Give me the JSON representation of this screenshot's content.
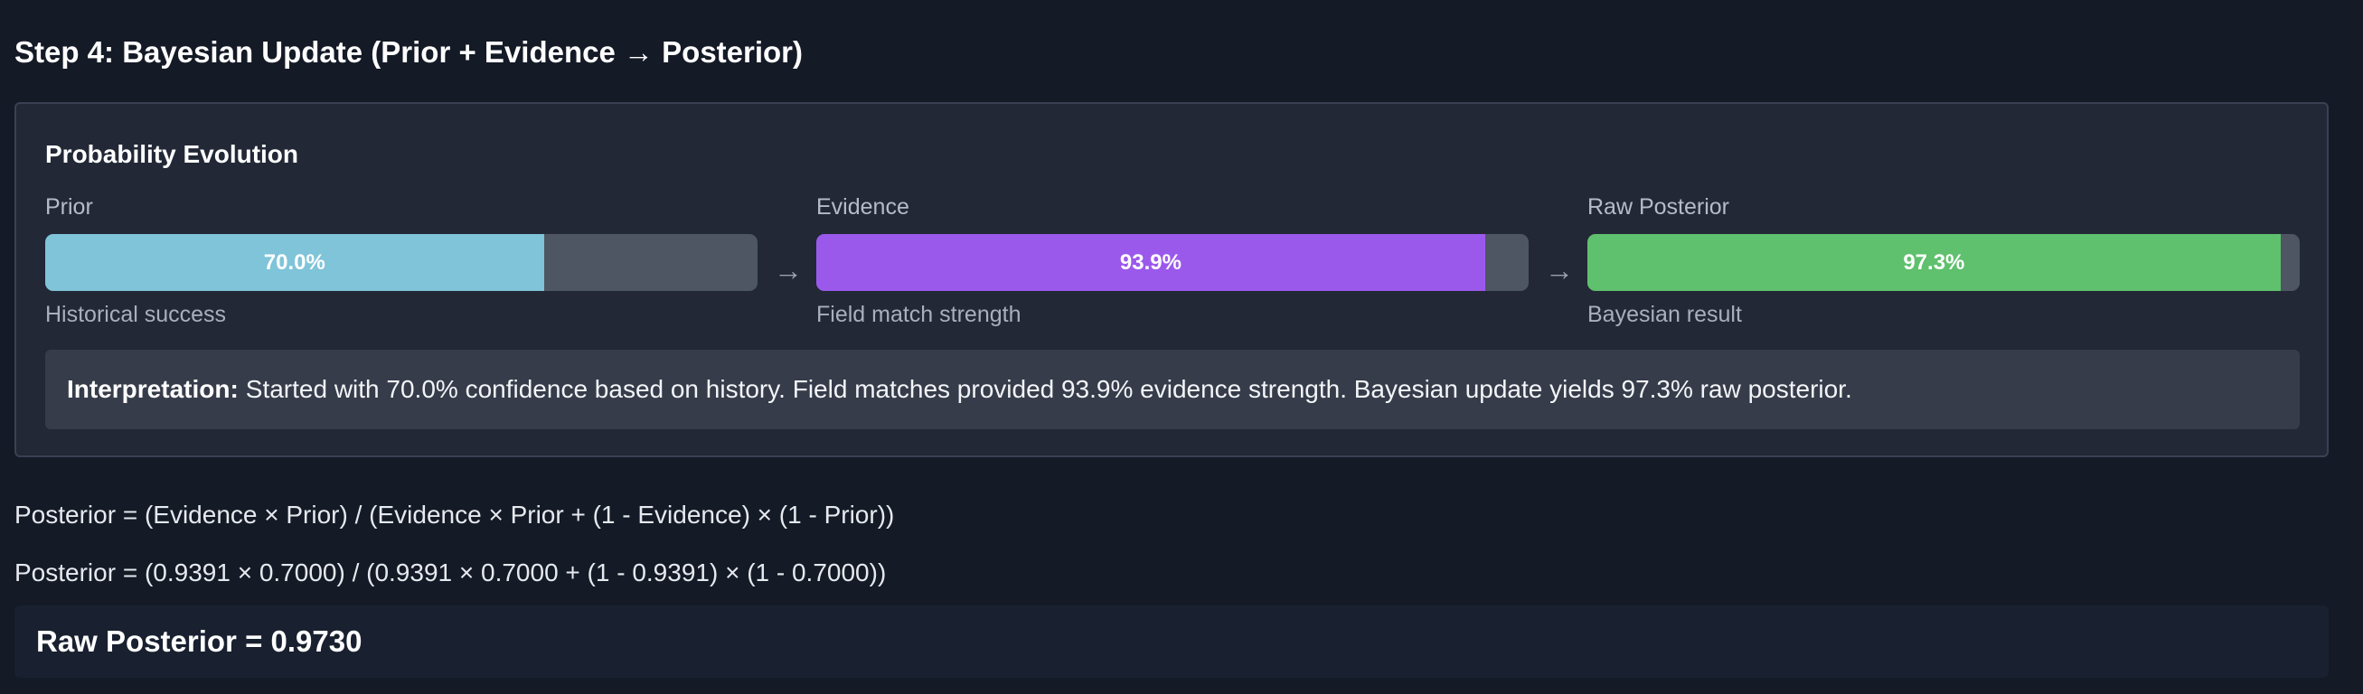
{
  "step": {
    "title": "Step 4: Bayesian Update (Prior + Evidence → Posterior)"
  },
  "panel": {
    "title": "Probability Evolution",
    "stages": [
      {
        "label": "Prior",
        "value_text": "70.0%",
        "fraction": 0.7,
        "subtitle": "Historical success",
        "color": "#7fc4d9"
      },
      {
        "label": "Evidence",
        "value_text": "93.9%",
        "fraction": 0.939,
        "subtitle": "Field match strength",
        "color": "#9b59ec"
      },
      {
        "label": "Raw Posterior",
        "value_text": "97.3%",
        "fraction": 0.973,
        "subtitle": "Bayesian result",
        "color": "#5fc06d"
      }
    ],
    "arrow_icon": "arrow-right-icon",
    "interpretation": {
      "label": "Interpretation:",
      "text": "Started with 70.0% confidence based on history. Field matches provided 93.9% evidence strength. Bayesian update yields 97.3% raw posterior."
    }
  },
  "formulas": {
    "general": "Posterior = (Evidence × Prior) / (Evidence × Prior + (1 - Evidence) × (1 - Prior))",
    "substituted": "Posterior = (0.9391 × 0.7000) / (0.9391 × 0.7000 + (1 - 0.9391) × (1 - 0.7000))"
  },
  "result": {
    "text": "Raw Posterior = 0.9730"
  },
  "colors": {
    "background": "#141a26",
    "panel": "#222836",
    "track": "#4e5563"
  }
}
